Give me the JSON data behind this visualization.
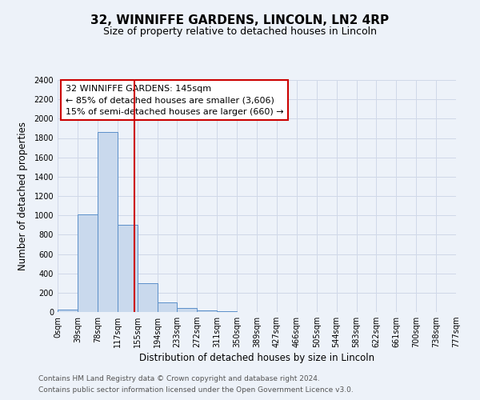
{
  "title": "32, WINNIFFE GARDENS, LINCOLN, LN2 4RP",
  "subtitle": "Size of property relative to detached houses in Lincoln",
  "xlabel": "Distribution of detached houses by size in Lincoln",
  "ylabel": "Number of detached properties",
  "bar_values": [
    25,
    1010,
    1860,
    900,
    300,
    100,
    45,
    20,
    5,
    0,
    0,
    0,
    0,
    0,
    0,
    0,
    0,
    0,
    0,
    0
  ],
  "bar_labels": [
    "0sqm",
    "39sqm",
    "78sqm",
    "117sqm",
    "155sqm",
    "194sqm",
    "233sqm",
    "272sqm",
    "311sqm",
    "350sqm",
    "389sqm",
    "427sqm",
    "466sqm",
    "505sqm",
    "544sqm",
    "583sqm",
    "622sqm",
    "661sqm",
    "700sqm",
    "738sqm",
    "777sqm"
  ],
  "bar_color": "#c9d9ed",
  "bar_edge_color": "#5b8fc9",
  "grid_color": "#d0d8e8",
  "background_color": "#edf2f9",
  "annotation_box_color": "#ffffff",
  "annotation_border_color": "#cc0000",
  "red_line_x": 3.85,
  "annotation_title": "32 WINNIFFE GARDENS: 145sqm",
  "annotation_line1": "← 85% of detached houses are smaller (3,606)",
  "annotation_line2": "15% of semi-detached houses are larger (660) →",
  "ylim": [
    0,
    2400
  ],
  "yticks": [
    0,
    200,
    400,
    600,
    800,
    1000,
    1200,
    1400,
    1600,
    1800,
    2000,
    2200,
    2400
  ],
  "footer_line1": "Contains HM Land Registry data © Crown copyright and database right 2024.",
  "footer_line2": "Contains public sector information licensed under the Open Government Licence v3.0.",
  "title_fontsize": 11,
  "subtitle_fontsize": 9,
  "annotation_fontsize": 8,
  "tick_fontsize": 7,
  "axis_label_fontsize": 8.5,
  "footer_fontsize": 6.5
}
